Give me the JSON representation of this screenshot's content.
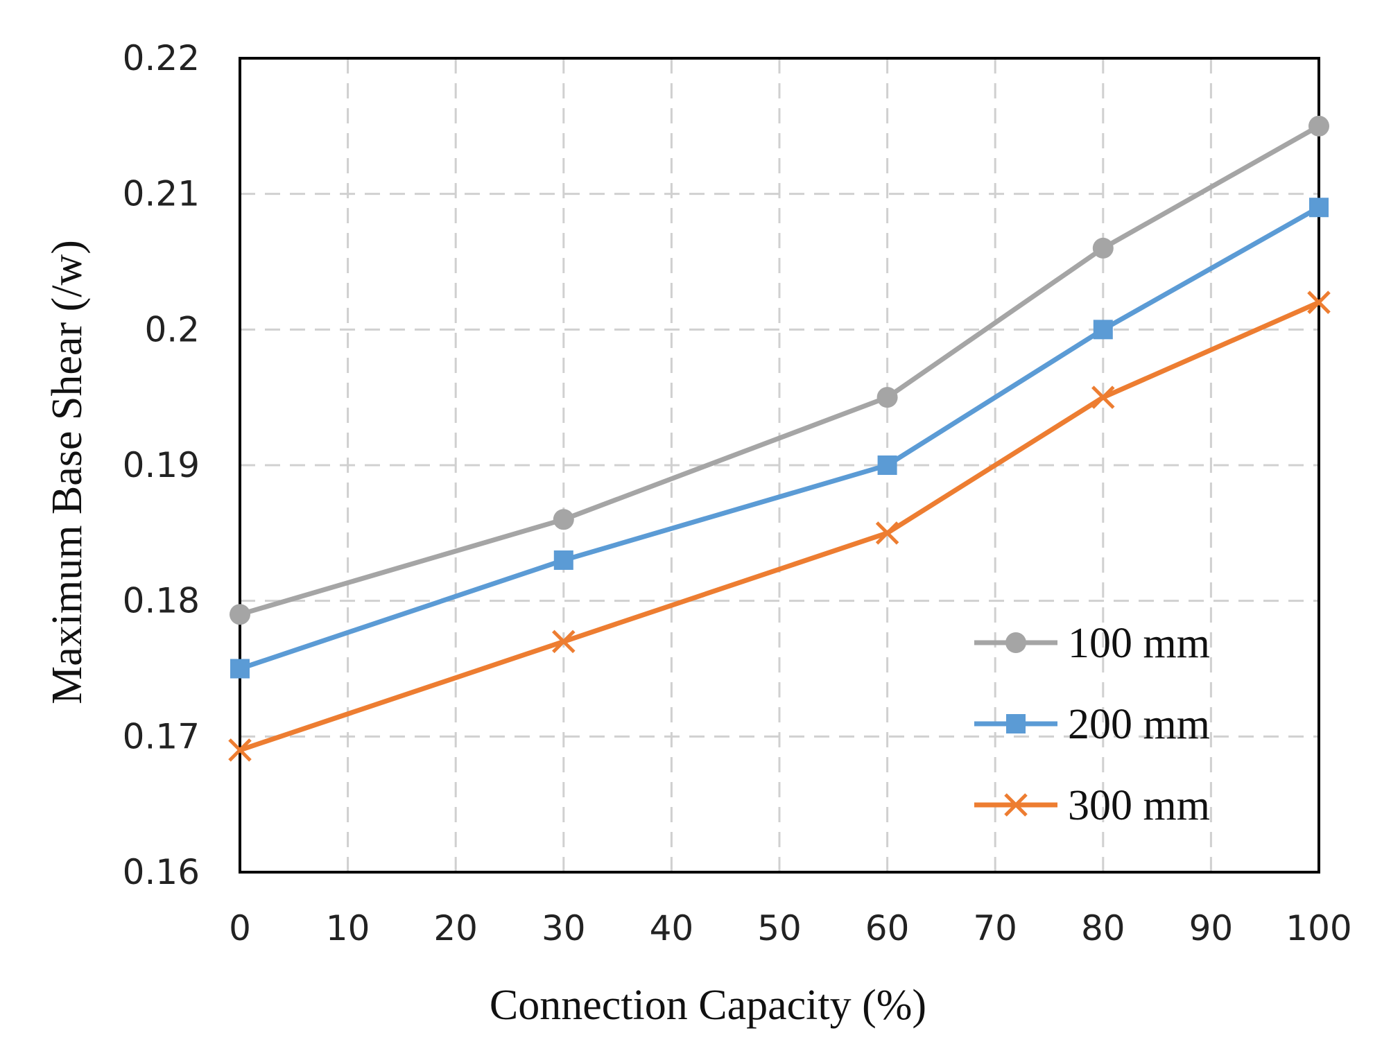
{
  "chart_data": {
    "type": "line",
    "title": "",
    "xlabel": "Connection Capacity (%)",
    "ylabel": "Maximum Base Shear (/w)",
    "xlim": [
      0,
      100
    ],
    "ylim": [
      0.16,
      0.22
    ],
    "xticks": [
      "0",
      "10",
      "20",
      "30",
      "40",
      "50",
      "60",
      "70",
      "80",
      "90",
      "100"
    ],
    "yticks": [
      "0.16",
      "0.17",
      "0.18",
      "0.19",
      "0.2",
      "0.21",
      "0.22"
    ],
    "grid": true,
    "legend_position": "bottom-right",
    "x": [
      0,
      30,
      60,
      80,
      100
    ],
    "series": [
      {
        "name": "100 mm",
        "marker": "circle",
        "color": "#a5a5a5",
        "values": [
          0.179,
          0.186,
          0.195,
          0.206,
          0.215
        ]
      },
      {
        "name": "200 mm",
        "marker": "square",
        "color": "#5b9bd5",
        "values": [
          0.175,
          0.183,
          0.19,
          0.2,
          0.209
        ]
      },
      {
        "name": "300 mm",
        "marker": "x",
        "color": "#ed7d31",
        "values": [
          0.169,
          0.177,
          0.185,
          0.195,
          0.202
        ]
      }
    ]
  }
}
